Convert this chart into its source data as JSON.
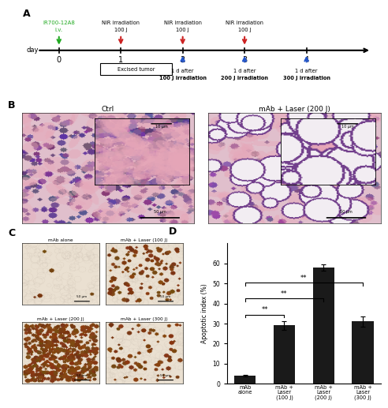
{
  "panel_D": {
    "categories": [
      "mAb\nalone",
      "mAb +\nLaser\n(100 J)",
      "mAb +\nLaser\n(200 J)",
      "mAb +\nLaser\n(300 J)"
    ],
    "values": [
      4.0,
      29.0,
      58.0,
      31.0
    ],
    "errors": [
      0.5,
      2.0,
      1.5,
      2.5
    ],
    "bar_color": "#1a1a1a",
    "ylabel": "Apoptotic index (%)",
    "ylim": [
      0,
      70
    ],
    "yticks": [
      0,
      10,
      20,
      30,
      40,
      50,
      60
    ]
  },
  "bg_color": "#ffffff",
  "panel_label_fontsize": 9
}
